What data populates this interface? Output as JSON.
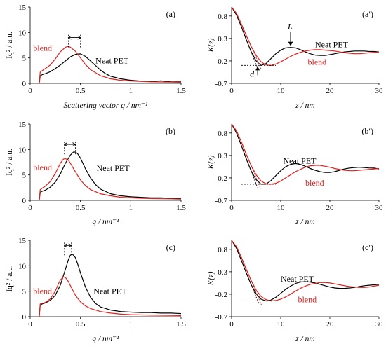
{
  "colors": {
    "neat": "#000000",
    "blend": "#e0201c",
    "axis": "#000000"
  },
  "chart_data": [
    {
      "panel": "(a)",
      "type": "line",
      "ylabel": "Iq² / a.u.",
      "xlabel": "Scattering vector q / nm⁻¹",
      "xlim": [
        0,
        1.5
      ],
      "ylim": [
        0,
        15
      ],
      "xticks": [
        "0",
        "0.5",
        "1",
        "1.5"
      ],
      "yticks": [
        "0",
        "5",
        "10",
        "15"
      ],
      "series": [
        {
          "name": "Neat PET",
          "color": "black",
          "label_at": [
            0.65,
            3.9
          ],
          "x": [
            0.09,
            0.1,
            0.12,
            0.15,
            0.2,
            0.25,
            0.3,
            0.35,
            0.4,
            0.45,
            0.5,
            0.55,
            0.6,
            0.65,
            0.7,
            0.75,
            0.8,
            0.9,
            1.0,
            1.1,
            1.2,
            1.3,
            1.4,
            1.5
          ],
          "y": [
            0,
            1.5,
            1.7,
            1.9,
            2.3,
            2.9,
            3.6,
            4.4,
            5.2,
            5.7,
            5.8,
            5.3,
            4.4,
            3.5,
            2.6,
            1.9,
            1.4,
            0.9,
            0.6,
            0.45,
            0.35,
            0.5,
            0.3,
            0.3
          ]
        },
        {
          "name": "blend",
          "color": "red",
          "label_at": [
            0.03,
            6.4
          ],
          "x": [
            0.09,
            0.1,
            0.12,
            0.15,
            0.2,
            0.25,
            0.3,
            0.35,
            0.38,
            0.4,
            0.45,
            0.5,
            0.55,
            0.6,
            0.7,
            0.8,
            0.9,
            1.0,
            1.2,
            1.4,
            1.5
          ],
          "y": [
            0,
            2.2,
            2.5,
            2.9,
            3.6,
            4.8,
            6.2,
            7.1,
            7.3,
            7.1,
            6.3,
            5.0,
            3.7,
            2.7,
            1.5,
            0.9,
            0.6,
            0.45,
            0.3,
            0.25,
            0.2
          ]
        }
      ],
      "annotation": {
        "type": "peak-shift",
        "x1": 0.38,
        "x2": 0.5,
        "y": 9.0
      }
    },
    {
      "panel": "(a′)",
      "type": "line",
      "ylabel": "K(z)",
      "xlabel": "z / nm",
      "xlim": [
        0,
        30
      ],
      "ylim": [
        -0.7,
        1.0
      ],
      "xticks": [
        "0",
        "10",
        "20",
        "30"
      ],
      "yticks": [
        "0.8",
        "0.3",
        "-0.2",
        "-0.7"
      ],
      "series": [
        {
          "name": "Neat PET",
          "color": "black",
          "label_at": [
            17,
            0.1
          ],
          "x": [
            0,
            1,
            2,
            3,
            4,
            5,
            6,
            7,
            8,
            9,
            10,
            11,
            12,
            13,
            14,
            15,
            16,
            17,
            18,
            19,
            20,
            21,
            22,
            23,
            24,
            25,
            26,
            27,
            28,
            29,
            30
          ],
          "y": [
            1.0,
            0.82,
            0.56,
            0.27,
            0.0,
            -0.2,
            -0.3,
            -0.26,
            -0.15,
            -0.04,
            0.04,
            0.09,
            0.1,
            0.09,
            0.05,
            0.0,
            -0.04,
            -0.07,
            -0.08,
            -0.08,
            -0.06,
            -0.04,
            -0.02,
            0.0,
            0.01,
            0.02,
            0.02,
            0.02,
            0.01,
            0.01,
            0.0
          ]
        },
        {
          "name": "blend",
          "color": "red",
          "label_at": [
            15.5,
            -0.29
          ],
          "x": [
            0,
            1,
            2,
            3,
            4,
            5,
            6,
            7,
            8,
            9,
            10,
            11,
            12,
            13,
            14,
            15,
            16,
            17,
            18,
            19,
            20,
            21,
            22,
            23,
            24,
            25,
            26,
            27,
            28,
            29,
            30
          ],
          "y": [
            1.0,
            0.86,
            0.62,
            0.36,
            0.12,
            -0.08,
            -0.22,
            -0.29,
            -0.3,
            -0.27,
            -0.22,
            -0.16,
            -0.1,
            -0.05,
            -0.01,
            0.02,
            0.04,
            0.05,
            0.05,
            0.04,
            0.03,
            0.02,
            0.0,
            -0.02,
            -0.03,
            -0.04,
            -0.04,
            -0.03,
            -0.02,
            -0.01,
            0.0
          ]
        }
      ],
      "annotation": {
        "type": "long-period",
        "L_label": "L",
        "d_label": "d",
        "L_x": 12,
        "baseline_y": -0.3
      }
    },
    {
      "panel": "(b)",
      "type": "line",
      "ylabel": "Iq² / a.u.",
      "xlabel": "q / nm⁻¹",
      "xlim": [
        0,
        1.5
      ],
      "ylim": [
        0,
        15
      ],
      "xticks": [
        "0",
        "0.5",
        "1",
        "1.5"
      ],
      "yticks": [
        "0",
        "5",
        "10",
        "15"
      ],
      "series": [
        {
          "name": "Neat PET",
          "color": "black",
          "label_at": [
            0.66,
            5.8
          ],
          "x": [
            0.09,
            0.1,
            0.12,
            0.15,
            0.2,
            0.25,
            0.3,
            0.35,
            0.4,
            0.43,
            0.45,
            0.47,
            0.5,
            0.55,
            0.6,
            0.65,
            0.7,
            0.8,
            0.9,
            1.0,
            1.1,
            1.2,
            1.3,
            1.4,
            1.5
          ],
          "y": [
            0,
            1.6,
            1.8,
            2.0,
            2.6,
            3.6,
            5.2,
            7.3,
            8.9,
            9.5,
            9.5,
            9.2,
            8.3,
            6.2,
            4.4,
            3.1,
            2.2,
            1.3,
            0.9,
            0.7,
            0.6,
            0.5,
            0.5,
            0.4,
            0.4
          ]
        },
        {
          "name": "blend",
          "color": "red",
          "label_at": [
            0.03,
            5.9
          ],
          "x": [
            0.09,
            0.1,
            0.12,
            0.15,
            0.2,
            0.25,
            0.3,
            0.33,
            0.35,
            0.38,
            0.4,
            0.45,
            0.5,
            0.55,
            0.6,
            0.7,
            0.8,
            0.9,
            1.0,
            1.2,
            1.4,
            1.5
          ],
          "y": [
            0,
            2.1,
            2.4,
            2.8,
            3.7,
            5.3,
            7.3,
            8.1,
            8.2,
            7.9,
            7.3,
            5.6,
            4.0,
            2.9,
            2.1,
            1.3,
            0.9,
            0.6,
            0.5,
            0.35,
            0.3,
            0.25
          ]
        }
      ],
      "annotation": {
        "type": "peak-shift",
        "x1": 0.34,
        "x2": 0.45,
        "y": 11.0
      }
    },
    {
      "panel": "(b′)",
      "type": "line",
      "ylabel": "K(z)",
      "xlabel": "z / nm",
      "xlim": [
        0,
        30
      ],
      "ylim": [
        -0.7,
        1.0
      ],
      "xticks": [
        "0",
        "10",
        "20",
        "30"
      ],
      "yticks": [
        "0.8",
        "0.3",
        "-0.2",
        "-0.7"
      ],
      "series": [
        {
          "name": "Neat PET",
          "color": "black",
          "label_at": [
            10.5,
            0.12
          ],
          "x": [
            0,
            1,
            2,
            3,
            4,
            5,
            6,
            7,
            8,
            9,
            10,
            11,
            12,
            13,
            14,
            15,
            16,
            17,
            18,
            19,
            20,
            21,
            22,
            23,
            24,
            25,
            26,
            27,
            28,
            29,
            30
          ],
          "y": [
            1.0,
            0.8,
            0.52,
            0.22,
            -0.05,
            -0.24,
            -0.34,
            -0.34,
            -0.26,
            -0.15,
            -0.04,
            0.05,
            0.1,
            0.12,
            0.1,
            0.06,
            0.01,
            -0.03,
            -0.06,
            -0.08,
            -0.08,
            -0.06,
            -0.03,
            0.0,
            0.02,
            0.03,
            0.04,
            0.03,
            0.02,
            0.02,
            0.0
          ]
        },
        {
          "name": "blend",
          "color": "red",
          "label_at": [
            15,
            -0.37
          ],
          "x": [
            0,
            1,
            2,
            3,
            4,
            5,
            6,
            7,
            8,
            9,
            10,
            11,
            12,
            13,
            14,
            15,
            16,
            17,
            18,
            19,
            20,
            21,
            22,
            23,
            24,
            25,
            26,
            27,
            28,
            29,
            30
          ],
          "y": [
            1.0,
            0.85,
            0.6,
            0.32,
            0.07,
            -0.13,
            -0.27,
            -0.33,
            -0.34,
            -0.32,
            -0.27,
            -0.2,
            -0.13,
            -0.06,
            -0.01,
            0.04,
            0.07,
            0.08,
            0.08,
            0.06,
            0.04,
            0.01,
            -0.01,
            -0.03,
            -0.04,
            -0.04,
            -0.03,
            -0.02,
            -0.01,
            0.0,
            0.01
          ]
        }
      ],
      "annotation": {
        "type": "baseline",
        "baseline_y": -0.34
      }
    },
    {
      "panel": "(c)",
      "type": "line",
      "ylabel": "Iq² / a.u.",
      "xlabel": "q / nm⁻¹",
      "xlim": [
        0,
        1.5
      ],
      "ylim": [
        0,
        15
      ],
      "xticks": [
        "0",
        "0.5",
        "1",
        "1.5"
      ],
      "yticks": [
        "0",
        "5",
        "10",
        "15"
      ],
      "series": [
        {
          "name": "Neat PET",
          "color": "black",
          "label_at": [
            0.63,
            4.5
          ],
          "x": [
            0.09,
            0.1,
            0.12,
            0.15,
            0.2,
            0.25,
            0.3,
            0.35,
            0.38,
            0.4,
            0.42,
            0.45,
            0.48,
            0.5,
            0.55,
            0.6,
            0.65,
            0.7,
            0.8,
            0.9,
            1.0,
            1.1,
            1.2,
            1.3,
            1.4,
            1.5
          ],
          "y": [
            0,
            2.3,
            2.5,
            2.7,
            3.2,
            4.2,
            6.2,
            9.3,
            11.2,
            12.1,
            12.3,
            11.6,
            9.9,
            8.6,
            5.8,
            3.8,
            2.6,
            1.9,
            1.3,
            1.0,
            0.9,
            0.8,
            0.8,
            0.7,
            0.7,
            0.6
          ]
        },
        {
          "name": "blend",
          "color": "red",
          "label_at": [
            0.03,
            4.5
          ],
          "x": [
            0.09,
            0.1,
            0.12,
            0.15,
            0.2,
            0.25,
            0.28,
            0.3,
            0.33,
            0.35,
            0.38,
            0.4,
            0.45,
            0.5,
            0.55,
            0.6,
            0.7,
            0.8,
            0.9,
            1.0,
            1.2,
            1.4,
            1.5
          ],
          "y": [
            0,
            2.5,
            2.6,
            2.8,
            3.5,
            5.0,
            6.4,
            7.2,
            7.8,
            7.7,
            6.9,
            6.1,
            4.2,
            2.9,
            2.1,
            1.6,
            1.0,
            0.7,
            0.5,
            0.4,
            0.3,
            0.25,
            0.2
          ]
        }
      ],
      "annotation": {
        "type": "peak-shift",
        "x1": 0.34,
        "x2": 0.41,
        "y": 14.0
      }
    },
    {
      "panel": "(c′)",
      "type": "line",
      "ylabel": "K(z)",
      "xlabel": "z / nm",
      "xlim": [
        0,
        30
      ],
      "ylim": [
        -0.7,
        1.0
      ],
      "xticks": [
        "0",
        "10",
        "20",
        "30"
      ],
      "yticks": [
        "0.8",
        "0.3",
        "-0.2",
        "-0.7"
      ],
      "series": [
        {
          "name": "Neat PET",
          "color": "black",
          "label_at": [
            10,
            0.08
          ],
          "x": [
            0,
            1,
            2,
            3,
            4,
            5,
            6,
            7,
            8,
            9,
            10,
            11,
            12,
            13,
            14,
            15,
            16,
            17,
            18,
            19,
            20,
            21,
            22,
            23,
            24,
            25,
            26,
            27,
            28,
            29,
            30
          ],
          "y": [
            1.0,
            0.82,
            0.55,
            0.27,
            0.01,
            -0.19,
            -0.31,
            -0.35,
            -0.33,
            -0.27,
            -0.18,
            -0.09,
            -0.02,
            0.04,
            0.07,
            0.08,
            0.07,
            0.05,
            0.02,
            -0.01,
            -0.04,
            -0.06,
            -0.07,
            -0.07,
            -0.06,
            -0.05,
            -0.03,
            -0.01,
            0.0,
            0.01,
            0.02
          ]
        },
        {
          "name": "blend",
          "color": "red",
          "label_at": [
            13.5,
            -0.38
          ],
          "x": [
            0,
            1,
            2,
            3,
            4,
            5,
            6,
            7,
            8,
            9,
            10,
            11,
            12,
            13,
            14,
            15,
            16,
            17,
            18,
            19,
            20,
            21,
            22,
            23,
            24,
            25,
            26,
            27,
            28,
            29,
            30
          ],
          "y": [
            1.0,
            0.86,
            0.62,
            0.35,
            0.1,
            -0.11,
            -0.25,
            -0.32,
            -0.35,
            -0.34,
            -0.31,
            -0.26,
            -0.2,
            -0.13,
            -0.07,
            -0.02,
            0.02,
            0.04,
            0.06,
            0.06,
            0.05,
            0.03,
            0.01,
            -0.01,
            -0.03,
            -0.04,
            -0.05,
            -0.05,
            -0.04,
            -0.02,
            0.0
          ]
        }
      ],
      "annotation": {
        "type": "baseline",
        "baseline_y": -0.35
      }
    }
  ]
}
